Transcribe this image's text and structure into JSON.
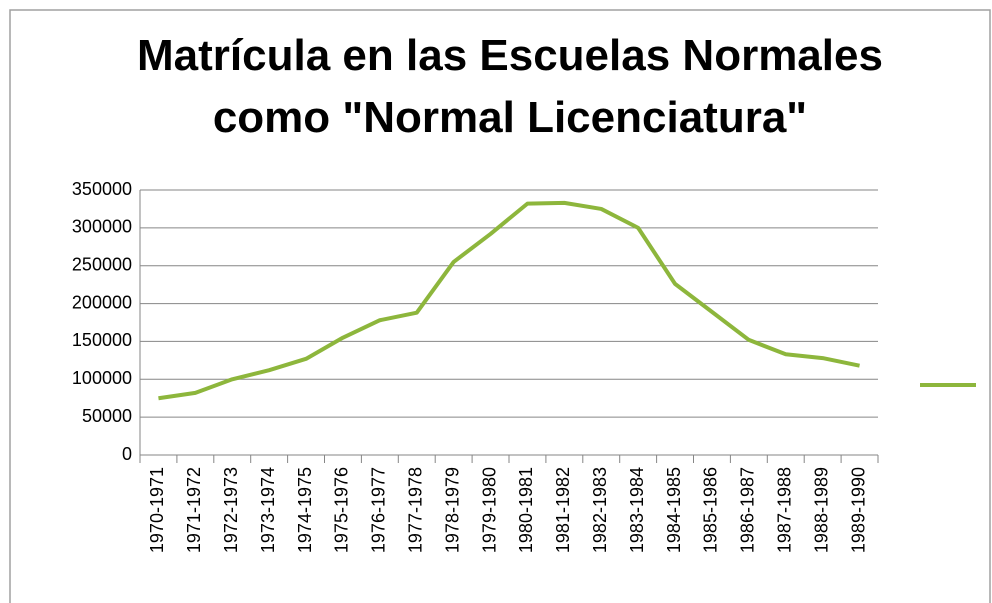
{
  "chart_data": {
    "type": "line",
    "title": [
      "Matrícula en las Escuelas Normales",
      "como \"Normal Licenciatura\""
    ],
    "categories": [
      "1970-1971",
      "1971-1972",
      "1972-1973",
      "1973-1974",
      "1974-1975",
      "1975-1976",
      "1976-1977",
      "1977-1978",
      "1978-1979",
      "1979-1980",
      "1980-1981",
      "1981-1982",
      "1982-1983",
      "1983-1984",
      "1984-1985",
      "1985-1986",
      "1986-1987",
      "1987-1988",
      "1988-1989",
      "1989-1990"
    ],
    "series": [
      {
        "color": "#8db63c",
        "values": [
          75000,
          82000,
          100000,
          112000,
          127000,
          155000,
          178000,
          188000,
          255000,
          292000,
          332000,
          333000,
          325000,
          300000,
          226000,
          189000,
          152000,
          133000,
          128000,
          118000
        ]
      }
    ],
    "ylim": [
      0,
      350000
    ],
    "yticks": [
      0,
      50000,
      100000,
      150000,
      200000,
      250000,
      300000,
      350000
    ],
    "grid": true,
    "legend": "right"
  }
}
